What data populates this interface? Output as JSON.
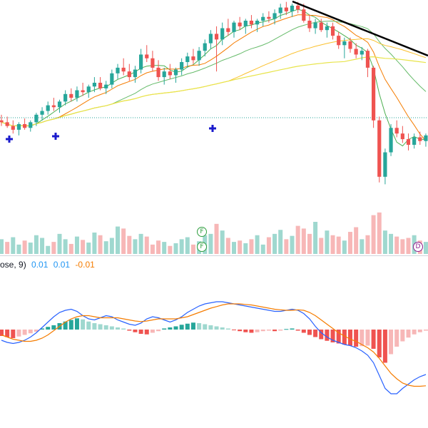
{
  "macd_legend": {
    "label": "ose, 9)",
    "macd": "0.01",
    "signal": "0.01",
    "hist": "-0.01"
  },
  "colors": {
    "up": "#26a69a",
    "down": "#ef5350",
    "up_light": "#9fd8cf",
    "down_light": "#f7b7b7",
    "macd_line": "#2962ff",
    "signal_line": "#f57c00",
    "trendline": "#000000",
    "marker_plus": "#1a1acc",
    "badge_green": "#2e9e3e",
    "badge_purple": "#8e1e8e"
  },
  "badges": [
    {
      "name": "earnings-F-badge-1",
      "text": "F"
    },
    {
      "name": "earnings-F-badge-2",
      "text": "F"
    },
    {
      "name": "dividend-D-badge",
      "text": "D"
    }
  ],
  "chart_data": {
    "type": "candlestick",
    "note_units": "price shown without axis; values relative",
    "candles": [
      [
        18.6,
        18.9,
        18.3,
        18.5
      ],
      [
        18.5,
        18.8,
        18.2,
        18.3
      ],
      [
        18.3,
        18.6,
        17.9,
        18.1
      ],
      [
        18.1,
        18.5,
        17.8,
        18.4
      ],
      [
        18.4,
        18.7,
        18.1,
        18.2
      ],
      [
        18.2,
        18.6,
        18.0,
        18.5
      ],
      [
        18.5,
        19.0,
        18.3,
        18.9
      ],
      [
        18.9,
        19.3,
        18.6,
        19.1
      ],
      [
        19.1,
        19.6,
        18.9,
        19.4
      ],
      [
        19.4,
        19.8,
        19.1,
        19.3
      ],
      [
        19.3,
        19.7,
        19.0,
        19.6
      ],
      [
        19.6,
        20.2,
        19.4,
        20.0
      ],
      [
        20.0,
        20.3,
        19.6,
        19.8
      ],
      [
        19.8,
        20.4,
        19.6,
        20.2
      ],
      [
        20.2,
        20.6,
        19.9,
        20.1
      ],
      [
        20.1,
        20.5,
        19.8,
        20.4
      ],
      [
        20.4,
        20.9,
        20.1,
        20.6
      ],
      [
        20.6,
        20.9,
        20.2,
        20.3
      ],
      [
        20.3,
        20.7,
        20.0,
        20.5
      ],
      [
        20.5,
        21.3,
        20.3,
        21.1
      ],
      [
        21.1,
        21.6,
        20.8,
        21.4
      ],
      [
        21.4,
        21.9,
        21.0,
        21.2
      ],
      [
        21.2,
        21.6,
        20.7,
        20.9
      ],
      [
        20.9,
        21.5,
        20.6,
        21.3
      ],
      [
        21.3,
        22.4,
        21.1,
        22.1
      ],
      [
        22.1,
        22.6,
        21.7,
        21.9
      ],
      [
        21.9,
        22.3,
        21.2,
        21.4
      ],
      [
        21.4,
        21.8,
        20.7,
        20.9
      ],
      [
        20.9,
        21.4,
        20.5,
        21.2
      ],
      [
        21.2,
        21.6,
        20.8,
        21.0
      ],
      [
        21.0,
        21.4,
        20.6,
        21.3
      ],
      [
        21.3,
        21.9,
        21.0,
        21.7
      ],
      [
        21.7,
        22.2,
        21.4,
        22.0
      ],
      [
        22.0,
        22.4,
        21.6,
        21.8
      ],
      [
        21.8,
        22.5,
        21.5,
        22.3
      ],
      [
        22.3,
        22.9,
        22.0,
        22.7
      ],
      [
        22.7,
        23.4,
        22.4,
        23.2
      ],
      [
        23.2,
        23.6,
        21.2,
        22.9
      ],
      [
        22.9,
        23.8,
        22.6,
        23.5
      ],
      [
        23.5,
        24.0,
        23.1,
        23.3
      ],
      [
        23.3,
        23.9,
        23.0,
        23.8
      ],
      [
        23.8,
        24.1,
        23.4,
        23.6
      ],
      [
        23.6,
        24.0,
        23.2,
        23.9
      ],
      [
        23.9,
        24.2,
        23.5,
        23.7
      ],
      [
        23.7,
        24.0,
        23.3,
        23.9
      ],
      [
        23.9,
        24.3,
        23.6,
        24.1
      ],
      [
        24.1,
        24.4,
        23.8,
        24.0
      ],
      [
        24.0,
        24.5,
        23.7,
        24.3
      ],
      [
        24.3,
        24.8,
        24.0,
        24.6
      ],
      [
        24.6,
        24.9,
        24.2,
        24.4
      ],
      [
        24.4,
        24.8,
        24.1,
        24.7
      ],
      [
        24.7,
        24.9,
        24.3,
        24.5
      ],
      [
        24.5,
        24.8,
        23.8,
        23.9
      ],
      [
        23.9,
        24.2,
        23.3,
        23.5
      ],
      [
        23.5,
        24.0,
        23.2,
        23.8
      ],
      [
        23.8,
        24.0,
        23.3,
        23.4
      ],
      [
        23.4,
        23.8,
        23.0,
        23.6
      ],
      [
        23.6,
        23.8,
        22.9,
        23.1
      ],
      [
        23.1,
        23.3,
        22.4,
        22.6
      ],
      [
        22.6,
        23.0,
        21.9,
        22.8
      ],
      [
        22.8,
        23.0,
        22.2,
        22.4
      ],
      [
        22.4,
        22.7,
        21.9,
        22.1
      ],
      [
        22.1,
        22.5,
        21.8,
        22.3
      ],
      [
        22.3,
        22.4,
        20.9,
        21.4
      ],
      [
        21.4,
        21.5,
        18.2,
        18.6
      ],
      [
        18.6,
        18.8,
        15.3,
        15.6
      ],
      [
        15.6,
        17.1,
        15.2,
        16.9
      ],
      [
        16.9,
        18.4,
        16.7,
        18.2
      ],
      [
        18.2,
        18.6,
        17.7,
        17.9
      ],
      [
        17.9,
        18.3,
        17.4,
        17.6
      ],
      [
        17.6,
        17.9,
        17.0,
        17.3
      ],
      [
        17.3,
        17.9,
        17.1,
        17.7
      ],
      [
        17.7,
        18.0,
        17.3,
        17.5
      ],
      [
        17.5,
        17.9,
        17.2,
        17.8
      ]
    ],
    "volume_up": [
      true,
      false,
      true,
      true,
      false,
      true,
      true,
      true,
      true,
      false,
      true,
      true,
      false,
      true,
      false,
      true,
      true,
      false,
      true,
      true,
      true,
      false,
      false,
      true,
      true,
      false,
      false,
      false,
      true,
      false,
      true,
      true,
      true,
      false,
      true,
      true,
      true,
      false,
      true,
      false,
      true,
      false,
      true,
      false,
      true,
      true,
      false,
      true,
      true,
      false,
      true,
      false,
      false,
      false,
      true,
      false,
      true,
      false,
      false,
      true,
      false,
      false,
      true,
      false,
      false,
      false,
      true,
      true,
      false,
      false,
      false,
      true,
      false,
      true
    ],
    "volumes": [
      22,
      18,
      25,
      14,
      20,
      17,
      28,
      24,
      12,
      18,
      30,
      22,
      15,
      26,
      21,
      17,
      32,
      28,
      19,
      24,
      41,
      38,
      27,
      22,
      30,
      26,
      14,
      20,
      18,
      12,
      16,
      22,
      25,
      14,
      19,
      28,
      30,
      45,
      35,
      24,
      18,
      20,
      16,
      22,
      28,
      14,
      25,
      30,
      36,
      22,
      27,
      42,
      38,
      30,
      48,
      24,
      35,
      28,
      26,
      20,
      33,
      40,
      22,
      28,
      58,
      62,
      35,
      30,
      26,
      22,
      24,
      28,
      20,
      18
    ],
    "macd_hist": [
      -0.12,
      -0.14,
      -0.16,
      -0.13,
      -0.1,
      -0.07,
      -0.04,
      0.02,
      0.05,
      0.08,
      0.12,
      0.15,
      0.18,
      0.21,
      0.19,
      0.15,
      0.12,
      0.1,
      0.08,
      0.06,
      0.04,
      0.02,
      -0.02,
      -0.05,
      -0.08,
      -0.09,
      -0.06,
      -0.03,
      0.02,
      0.04,
      0.06,
      0.09,
      0.11,
      0.13,
      0.12,
      0.1,
      0.08,
      0.06,
      0.04,
      0.02,
      -0.01,
      -0.03,
      -0.05,
      -0.06,
      -0.05,
      -0.03,
      -0.02,
      -0.03,
      -0.02,
      0.01,
      0.02,
      -0.02,
      -0.06,
      -0.1,
      -0.14,
      -0.18,
      -0.21,
      -0.24,
      -0.26,
      -0.28,
      -0.3,
      -0.32,
      -0.31,
      -0.3,
      -0.36,
      -0.52,
      -0.62,
      -0.46,
      -0.32,
      -0.22,
      -0.15,
      -0.09,
      -0.05,
      -0.02
    ],
    "macd_line": [
      -0.2,
      -0.24,
      -0.26,
      -0.24,
      -0.2,
      -0.14,
      -0.06,
      0.04,
      0.14,
      0.24,
      0.32,
      0.36,
      0.38,
      0.34,
      0.26,
      0.2,
      0.18,
      0.22,
      0.26,
      0.24,
      0.18,
      0.14,
      0.1,
      0.08,
      0.12,
      0.2,
      0.24,
      0.22,
      0.18,
      0.14,
      0.18,
      0.24,
      0.32,
      0.38,
      0.44,
      0.48,
      0.5,
      0.52,
      0.52,
      0.5,
      0.48,
      0.46,
      0.44,
      0.42,
      0.4,
      0.38,
      0.36,
      0.34,
      0.34,
      0.36,
      0.38,
      0.36,
      0.3,
      0.2,
      0.06,
      -0.06,
      -0.14,
      -0.2,
      -0.24,
      -0.28,
      -0.3,
      -0.34,
      -0.4,
      -0.48,
      -0.62,
      -0.86,
      -1.1,
      -1.2,
      -1.2,
      -1.1,
      -1.02,
      -0.94,
      -0.88,
      -0.84
    ],
    "signal_line": [
      -0.1,
      -0.14,
      -0.18,
      -0.2,
      -0.22,
      -0.22,
      -0.2,
      -0.16,
      -0.1,
      -0.02,
      0.06,
      0.14,
      0.2,
      0.24,
      0.26,
      0.26,
      0.24,
      0.22,
      0.22,
      0.22,
      0.22,
      0.2,
      0.18,
      0.16,
      0.15,
      0.16,
      0.18,
      0.2,
      0.2,
      0.2,
      0.2,
      0.22,
      0.24,
      0.28,
      0.32,
      0.36,
      0.4,
      0.43,
      0.46,
      0.48,
      0.48,
      0.48,
      0.47,
      0.46,
      0.44,
      0.42,
      0.4,
      0.38,
      0.37,
      0.36,
      0.36,
      0.37,
      0.36,
      0.32,
      0.26,
      0.18,
      0.1,
      0.02,
      -0.06,
      -0.12,
      -0.18,
      -0.22,
      -0.28,
      -0.34,
      -0.42,
      -0.54,
      -0.68,
      -0.82,
      -0.92,
      -1.0,
      -1.04,
      -1.06,
      -1.06,
      -1.05
    ],
    "annotations": [
      "F",
      "F",
      "D"
    ]
  }
}
